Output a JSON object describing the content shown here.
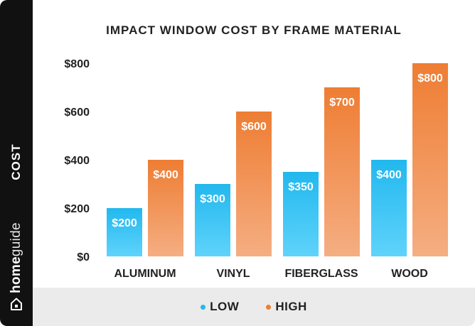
{
  "brand": {
    "name_bold": "home",
    "name_light": "guide"
  },
  "colors": {
    "low_top": "#22b8ee",
    "low_bottom": "#5fd3fb",
    "high_top": "#ee7d33",
    "high_bottom": "#f5ae82",
    "sidebar": "#111111",
    "legend_bg": "#ebebeb",
    "text": "#222222"
  },
  "icons": {
    "brand": "house-icon"
  },
  "chart_data": {
    "type": "bar",
    "title": "IMPACT WINDOW COST BY FRAME MATERIAL",
    "ylabel": "COST",
    "xlabel": "",
    "categories": [
      "ALUMINUM",
      "VINYL",
      "FIBERGLASS",
      "WOOD"
    ],
    "series": [
      {
        "name": "LOW",
        "values": [
          200,
          300,
          350,
          400
        ],
        "labels": [
          "$200",
          "$300",
          "$350",
          "$400"
        ]
      },
      {
        "name": "HIGH",
        "values": [
          400,
          600,
          700,
          800
        ],
        "labels": [
          "$400",
          "$600",
          "$700",
          "$800"
        ]
      }
    ],
    "yticks": [
      0,
      200,
      400,
      600,
      800
    ],
    "ytick_labels": [
      "$0",
      "$200",
      "$400",
      "$600",
      "$800"
    ],
    "ylim": [
      0,
      800
    ],
    "grid": false,
    "legend_position": "bottom"
  }
}
